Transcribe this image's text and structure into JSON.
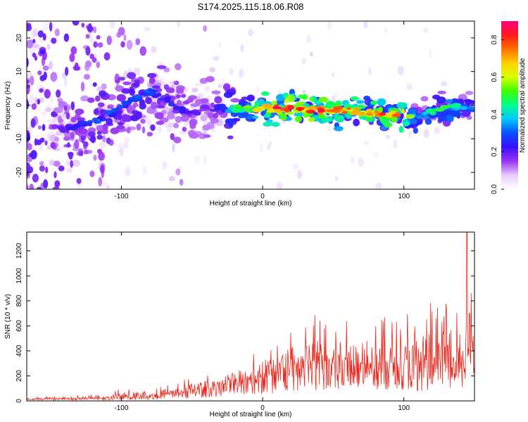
{
  "title": "S174.2025.115.18.06.R08",
  "chart_data": [
    {
      "type": "heatmap",
      "xlabel": "Height of straight line (km)",
      "ylabel": "Frequency (Hz)",
      "xlim": [
        -167,
        150
      ],
      "ylim": [
        -25,
        25
      ],
      "xticks": [
        -100,
        0,
        100
      ],
      "yticks": [
        -20,
        -10,
        0,
        10,
        20
      ],
      "colorbar": {
        "label": "Normalized spectral amplitude",
        "range": [
          0.0,
          0.9
        ],
        "ticks": [
          "0.0",
          "0.2",
          "0.4",
          "0.6",
          "0.8"
        ],
        "colors": [
          "#ffffff",
          "#e6ccff",
          "#9a34f2",
          "#3a10ff",
          "#0a4cff",
          "#00c8ff",
          "#00ff8c",
          "#3cff00",
          "#d8ff00",
          "#ffd200",
          "#ff7000",
          "#ff1a1a",
          "#ff0080"
        ]
      },
      "ridge": {
        "x": [
          -150,
          -140,
          -130,
          -120,
          -110,
          -100,
          -90,
          -80,
          -70,
          -60,
          -50,
          -40,
          -30,
          -20,
          -10,
          0,
          10,
          20,
          30,
          40,
          50,
          60,
          70,
          80,
          90,
          100,
          110,
          120,
          130,
          140,
          150
        ],
        "frequency": [
          -7,
          -7,
          -6,
          -5,
          -3,
          -1,
          2,
          4,
          2,
          -1,
          -3,
          -1,
          -1,
          -1,
          -1,
          -1,
          -1,
          -1,
          -1,
          -1.5,
          -1.5,
          -1.5,
          -2,
          -2.5,
          -3,
          -2.5,
          -4,
          -2,
          -1,
          0,
          -2
        ],
        "amplitude": [
          0.15,
          0.2,
          0.25,
          0.3,
          0.3,
          0.3,
          0.3,
          0.3,
          0.25,
          0.25,
          0.2,
          0.2,
          0.25,
          0.45,
          0.55,
          0.7,
          0.85,
          0.85,
          0.8,
          0.85,
          0.75,
          0.75,
          0.7,
          0.75,
          0.85,
          0.7,
          0.35,
          0.45,
          0.5,
          0.4,
          0.3
        ]
      }
    },
    {
      "type": "line",
      "xlabel": "Height of straight line (km)",
      "ylabel": "SNR (10 * v/v)",
      "xlim": [
        -167,
        150
      ],
      "ylim": [
        0,
        1350
      ],
      "xticks": [
        -100,
        0,
        100
      ],
      "yticks": [
        0,
        200,
        400,
        600,
        800,
        1000,
        1200
      ],
      "color": "#e8281e",
      "envelope": {
        "x": [
          -167,
          -150,
          -130,
          -110,
          -100,
          -90,
          -80,
          -70,
          -60,
          -50,
          -40,
          -30,
          -20,
          -10,
          0,
          10,
          20,
          30,
          40,
          50,
          60,
          70,
          80,
          90,
          100,
          110,
          120,
          130,
          140,
          145,
          150
        ],
        "baseline": [
          15,
          15,
          15,
          20,
          25,
          30,
          35,
          45,
          60,
          80,
          100,
          120,
          140,
          160,
          190,
          210,
          240,
          270,
          290,
          280,
          300,
          280,
          270,
          260,
          280,
          270,
          290,
          310,
          330,
          350,
          380
        ],
        "peaks": [
          30,
          35,
          45,
          70,
          110,
          130,
          90,
          120,
          160,
          200,
          220,
          260,
          320,
          420,
          470,
          540,
          620,
          680,
          720,
          700,
          660,
          680,
          700,
          740,
          760,
          780,
          800,
          810,
          820,
          1350,
          870
        ]
      }
    }
  ]
}
